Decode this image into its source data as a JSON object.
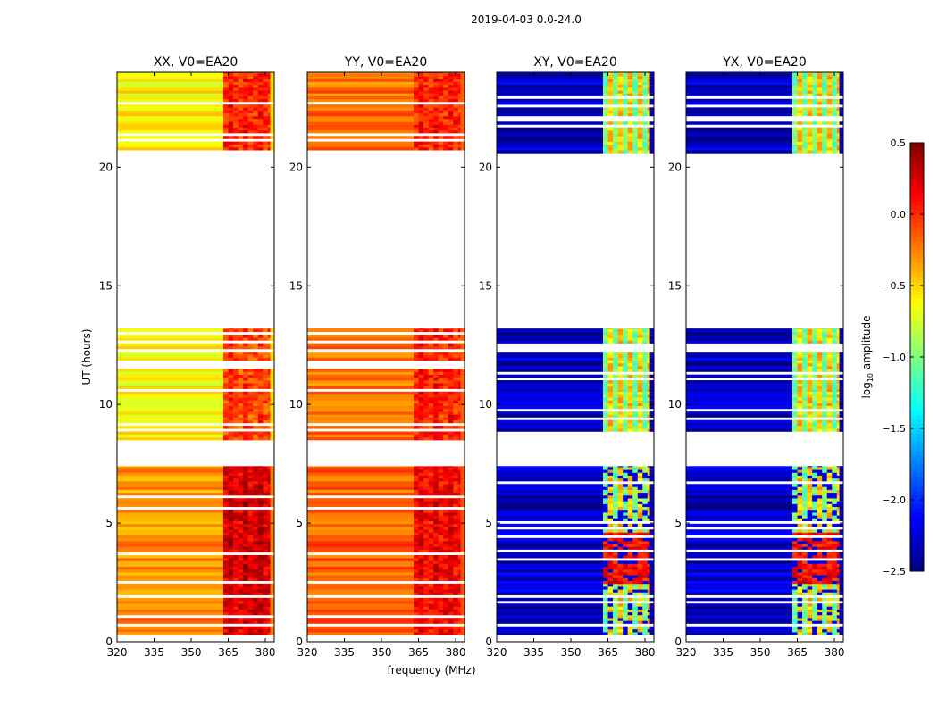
{
  "chart_data": {
    "type": "heatmap",
    "title": "2019-04-03 0.0-24.0",
    "xlabel": "frequency (MHz)",
    "ylabel": "UT (hours)",
    "xlim": [
      320,
      383.6
    ],
    "ylim": [
      0,
      24
    ],
    "xticks": [
      320,
      335,
      350,
      365,
      380
    ],
    "yticks": [
      0,
      5,
      10,
      15,
      20
    ],
    "colorbar": {
      "label": "log10 amplitude",
      "label_main": "log",
      "label_sub": "10",
      "label_rest": " amplitude",
      "range": [
        -2.5,
        0.5
      ],
      "ticks": [
        "0.5",
        "0.0",
        "−0.5",
        "−1.0",
        "−1.5",
        "−2.0",
        "−2.5"
      ],
      "tick_values": [
        0.5,
        0.0,
        -0.5,
        -1.0,
        -1.5,
        -2.0,
        -2.5
      ],
      "colormap": "jet"
    },
    "time_segments_hours": [
      [
        0.05,
        7.4
      ],
      [
        8.5,
        13.2
      ],
      [
        20.6,
        24.0
      ]
    ],
    "rfi_band_mhz": [
      363,
      382
    ],
    "panels": [
      {
        "title": "XX, V0=EA20",
        "base": [
          -0.3,
          -0.6,
          -0.6
        ],
        "band": [
          0.2,
          -0.1,
          0.0
        ],
        "cross": false
      },
      {
        "title": "YY, V0=EA20",
        "base": [
          -0.15,
          -0.2,
          -0.2
        ],
        "band": [
          0.1,
          0.0,
          0.0
        ],
        "cross": false
      },
      {
        "title": "XY, V0=EA20",
        "base": [
          -2.3,
          -2.3,
          -2.3
        ],
        "band": [
          -0.7,
          -0.7,
          -0.7
        ],
        "cross": true
      },
      {
        "title": "YX, V0=EA20",
        "base": [
          -2.3,
          -2.3,
          -2.3
        ],
        "band": [
          -0.7,
          -0.7,
          -0.7
        ],
        "cross": true
      }
    ]
  }
}
